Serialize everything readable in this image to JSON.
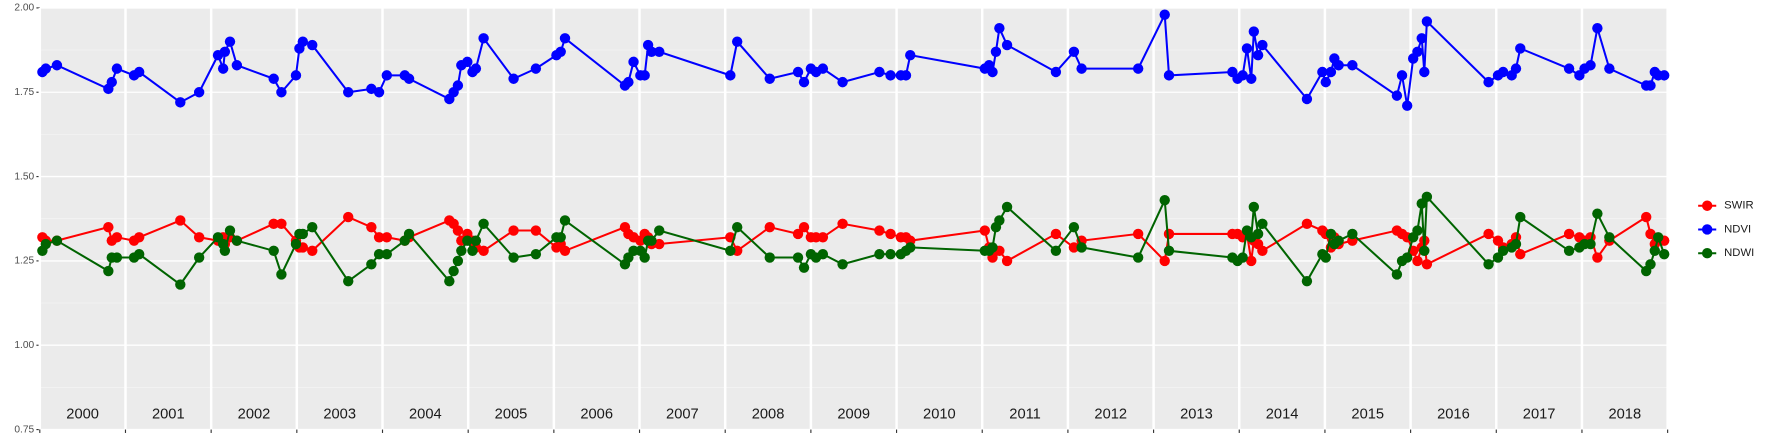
{
  "chart_data": {
    "type": "line",
    "x": [
      2000.03,
      2000.07,
      2000.2,
      2000.8,
      2000.84,
      2000.9,
      2001.1,
      2001.16,
      2001.64,
      2001.86,
      2002.08,
      2002.14,
      2002.16,
      2002.22,
      2002.3,
      2002.73,
      2002.82,
      2002.99,
      2003.03,
      2003.07,
      2003.18,
      2003.6,
      2003.87,
      2003.96,
      2004.05,
      2004.26,
      2004.31,
      2004.78,
      2004.83,
      2004.88,
      2004.92,
      2004.99,
      2005.05,
      2005.09,
      2005.18,
      2005.53,
      2005.79,
      2006.03,
      2006.08,
      2006.13,
      2006.83,
      2006.87,
      2006.93,
      2007.01,
      2007.06,
      2007.1,
      2007.14,
      2007.23,
      2008.06,
      2008.14,
      2008.52,
      2008.85,
      2008.92,
      2009.0,
      2009.06,
      2009.14,
      2009.37,
      2009.8,
      2009.93,
      2010.05,
      2010.11,
      2010.16,
      2011.03,
      2011.08,
      2011.12,
      2011.16,
      2011.2,
      2011.29,
      2011.86,
      2012.07,
      2012.16,
      2012.82,
      2013.13,
      2013.18,
      2013.92,
      2013.98,
      2014.04,
      2014.09,
      2014.14,
      2014.17,
      2014.22,
      2014.27,
      2014.79,
      2014.97,
      2015.01,
      2015.07,
      2015.11,
      2015.16,
      2015.32,
      2015.84,
      2015.9,
      2015.96,
      2016.03,
      2016.08,
      2016.13,
      2016.16,
      2016.19,
      2016.91,
      2017.02,
      2017.08,
      2017.18,
      2017.23,
      2017.28,
      2017.85,
      2017.97,
      2018.03,
      2018.1,
      2018.18,
      2018.32,
      2018.75,
      2018.8,
      2018.85,
      2018.89,
      2018.96
    ],
    "series": [
      {
        "name": "SWIR",
        "color": "#ff0000",
        "values": [
          1.32,
          1.31,
          1.31,
          1.35,
          1.31,
          1.32,
          1.31,
          1.32,
          1.37,
          1.32,
          1.31,
          1.32,
          1.3,
          1.32,
          1.31,
          1.36,
          1.36,
          1.31,
          1.29,
          1.29,
          1.28,
          1.38,
          1.35,
          1.32,
          1.32,
          1.31,
          1.32,
          1.37,
          1.36,
          1.34,
          1.31,
          1.33,
          1.31,
          1.29,
          1.28,
          1.34,
          1.34,
          1.29,
          1.3,
          1.28,
          1.35,
          1.33,
          1.32,
          1.31,
          1.33,
          1.32,
          1.3,
          1.3,
          1.32,
          1.28,
          1.35,
          1.33,
          1.35,
          1.32,
          1.32,
          1.32,
          1.36,
          1.34,
          1.33,
          1.32,
          1.32,
          1.31,
          1.34,
          1.29,
          1.26,
          1.28,
          1.28,
          1.25,
          1.33,
          1.29,
          1.31,
          1.33,
          1.25,
          1.33,
          1.33,
          1.33,
          1.32,
          1.33,
          1.25,
          1.31,
          1.3,
          1.28,
          1.36,
          1.34,
          1.33,
          1.29,
          1.32,
          1.3,
          1.31,
          1.34,
          1.33,
          1.32,
          1.28,
          1.25,
          1.29,
          1.31,
          1.24,
          1.33,
          1.31,
          1.29,
          1.3,
          1.32,
          1.27,
          1.33,
          1.32,
          1.31,
          1.32,
          1.26,
          1.31,
          1.38,
          1.33,
          1.3,
          1.31,
          1.31
        ]
      },
      {
        "name": "NDVI",
        "color": "#0000ff",
        "values": [
          1.81,
          1.82,
          1.83,
          1.76,
          1.78,
          1.82,
          1.8,
          1.81,
          1.72,
          1.75,
          1.86,
          1.82,
          1.87,
          1.9,
          1.83,
          1.79,
          1.75,
          1.8,
          1.88,
          1.9,
          1.89,
          1.75,
          1.76,
          1.75,
          1.8,
          1.8,
          1.79,
          1.73,
          1.75,
          1.77,
          1.83,
          1.84,
          1.81,
          1.82,
          1.91,
          1.79,
          1.82,
          1.86,
          1.87,
          1.91,
          1.77,
          1.78,
          1.84,
          1.8,
          1.8,
          1.89,
          1.87,
          1.87,
          1.8,
          1.9,
          1.79,
          1.81,
          1.78,
          1.82,
          1.81,
          1.82,
          1.78,
          1.81,
          1.8,
          1.8,
          1.8,
          1.86,
          1.82,
          1.83,
          1.81,
          1.87,
          1.94,
          1.89,
          1.81,
          1.87,
          1.82,
          1.82,
          1.98,
          1.8,
          1.81,
          1.79,
          1.8,
          1.88,
          1.79,
          1.93,
          1.86,
          1.89,
          1.73,
          1.81,
          1.78,
          1.81,
          1.85,
          1.83,
          1.83,
          1.74,
          1.8,
          1.71,
          1.85,
          1.87,
          1.91,
          1.81,
          1.96,
          1.78,
          1.8,
          1.81,
          1.8,
          1.82,
          1.88,
          1.82,
          1.8,
          1.82,
          1.83,
          1.94,
          1.82,
          1.77,
          1.77,
          1.81,
          1.8,
          1.8
        ]
      },
      {
        "name": "NDWI",
        "color": "#006400",
        "values": [
          1.28,
          1.3,
          1.31,
          1.22,
          1.26,
          1.26,
          1.26,
          1.27,
          1.18,
          1.26,
          1.32,
          1.3,
          1.28,
          1.34,
          1.31,
          1.28,
          1.21,
          1.3,
          1.33,
          1.33,
          1.35,
          1.19,
          1.24,
          1.27,
          1.27,
          1.31,
          1.33,
          1.19,
          1.22,
          1.25,
          1.28,
          1.31,
          1.28,
          1.31,
          1.36,
          1.26,
          1.27,
          1.32,
          1.32,
          1.37,
          1.24,
          1.26,
          1.28,
          1.28,
          1.26,
          1.31,
          1.31,
          1.34,
          1.28,
          1.35,
          1.26,
          1.26,
          1.23,
          1.27,
          1.26,
          1.27,
          1.24,
          1.27,
          1.27,
          1.27,
          1.28,
          1.29,
          1.28,
          1.28,
          1.29,
          1.35,
          1.37,
          1.41,
          1.28,
          1.35,
          1.29,
          1.26,
          1.43,
          1.28,
          1.26,
          1.25,
          1.26,
          1.34,
          1.32,
          1.41,
          1.33,
          1.36,
          1.19,
          1.27,
          1.26,
          1.33,
          1.3,
          1.31,
          1.33,
          1.21,
          1.25,
          1.26,
          1.32,
          1.34,
          1.42,
          1.28,
          1.44,
          1.24,
          1.26,
          1.28,
          1.29,
          1.3,
          1.38,
          1.28,
          1.29,
          1.3,
          1.3,
          1.39,
          1.32,
          1.22,
          1.24,
          1.28,
          1.32,
          1.27
        ]
      }
    ],
    "xlim": [
      2000,
      2019
    ],
    "xticks": [
      2000,
      2001,
      2002,
      2003,
      2004,
      2005,
      2006,
      2007,
      2008,
      2009,
      2010,
      2011,
      2012,
      2013,
      2014,
      2015,
      2016,
      2017,
      2018,
      2019
    ],
    "annotations": [
      {
        "x": 2000.5,
        "text": "2000"
      },
      {
        "x": 2001.5,
        "text": "2001"
      },
      {
        "x": 2002.5,
        "text": "2002"
      },
      {
        "x": 2003.5,
        "text": "2003"
      },
      {
        "x": 2004.5,
        "text": "2004"
      },
      {
        "x": 2005.5,
        "text": "2005"
      },
      {
        "x": 2006.5,
        "text": "2006"
      },
      {
        "x": 2007.5,
        "text": "2007"
      },
      {
        "x": 2008.5,
        "text": "2008"
      },
      {
        "x": 2009.5,
        "text": "2009"
      },
      {
        "x": 2010.5,
        "text": "2010"
      },
      {
        "x": 2011.5,
        "text": "2011"
      },
      {
        "x": 2012.5,
        "text": "2012"
      },
      {
        "x": 2013.5,
        "text": "2013"
      },
      {
        "x": 2014.5,
        "text": "2014"
      },
      {
        "x": 2015.5,
        "text": "2015"
      },
      {
        "x": 2016.5,
        "text": "2016"
      },
      {
        "x": 2017.5,
        "text": "2017"
      },
      {
        "x": 2018.5,
        "text": "2018"
      }
    ],
    "ylim": [
      0.75,
      2.0
    ],
    "yticks": [
      {
        "value": 0.75,
        "label": "0.75"
      },
      {
        "value": 1.0,
        "label": "1.00"
      },
      {
        "value": 1.25,
        "label": "1.25"
      },
      {
        "value": 1.5,
        "label": "1.50"
      },
      {
        "value": 1.75,
        "label": "1.75"
      },
      {
        "value": 2.0,
        "label": "2.00"
      }
    ],
    "minor_yticks": [
      0.875,
      1.125,
      1.375,
      1.625,
      1.875
    ],
    "grid": true,
    "legend": "right"
  }
}
